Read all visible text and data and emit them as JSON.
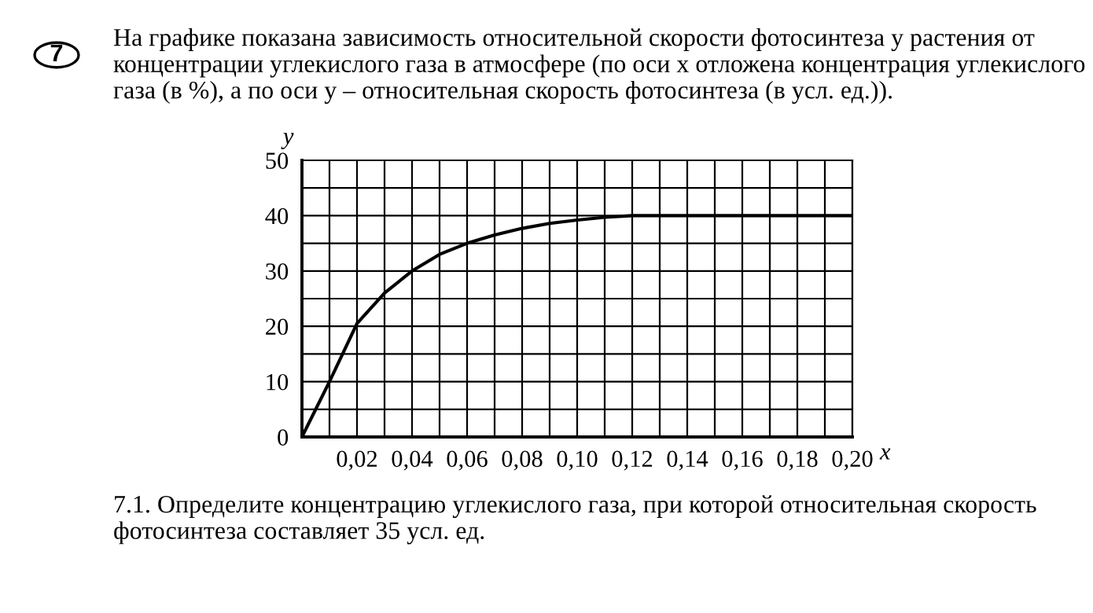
{
  "chart_data": {
    "type": "line",
    "title": "На графике показана зависимость относительной скорости фотосинтеза у растения от концентрации углекислого газа в атмосфере (по оси x отложена концентрация углекислого газа (в %), а по оси y – относительная скорость фотосинтеза (в усл. ед.)).",
    "xlabel": "x",
    "ylabel": "y",
    "annotations": [
      "7",
      "7.1. Определите концентрацию углекислого газа, при которой относительная скорость фотосинтеза составляет 35 усл. ед."
    ],
    "x": [
      0,
      0.01,
      0.02,
      0.03,
      0.04,
      0.05,
      0.06,
      0.07,
      0.08,
      0.09,
      0.1,
      0.11,
      0.12,
      0.14,
      0.16,
      0.18,
      0.2
    ],
    "series": [
      {
        "color": "#000000",
        "values": [
          0,
          10,
          20.5,
          26,
          30,
          33,
          35,
          36.5,
          37.7,
          38.6,
          39.2,
          39.7,
          40,
          40,
          40,
          40,
          40
        ]
      }
    ],
    "xlim": [
      0,
      0.2
    ],
    "ylim": [
      0,
      50
    ],
    "xticks": [
      {
        "value": 0,
        "label": null
      },
      {
        "value": 0.01,
        "label": null
      },
      {
        "value": 0.02,
        "label": "0,02"
      },
      {
        "value": 0.03,
        "label": null
      },
      {
        "value": 0.04,
        "label": "0,04"
      },
      {
        "value": 0.05,
        "label": null
      },
      {
        "value": 0.06,
        "label": "0,06"
      },
      {
        "value": 0.07,
        "label": null
      },
      {
        "value": 0.08,
        "label": "0,08"
      },
      {
        "value": 0.09,
        "label": null
      },
      {
        "value": 0.1,
        "label": "0,10"
      },
      {
        "value": 0.11,
        "label": null
      },
      {
        "value": 0.12,
        "label": "0,12"
      },
      {
        "value": 0.13,
        "label": null
      },
      {
        "value": 0.14,
        "label": "0,14"
      },
      {
        "value": 0.15,
        "label": null
      },
      {
        "value": 0.16,
        "label": "0,16"
      },
      {
        "value": 0.17,
        "label": null
      },
      {
        "value": 0.18,
        "label": "0,18"
      },
      {
        "value": 0.19,
        "label": null
      },
      {
        "value": 0.2,
        "label": "0,20"
      }
    ],
    "yticks": [
      0,
      {
        "value": 5,
        "label": null
      },
      10,
      {
        "value": 15,
        "label": null
      },
      20,
      {
        "value": 25,
        "label": null
      },
      30,
      {
        "value": 35,
        "label": null
      },
      40,
      {
        "value": 45,
        "label": null
      },
      50
    ],
    "grid": true,
    "line_style": "solid",
    "marker": "none"
  }
}
